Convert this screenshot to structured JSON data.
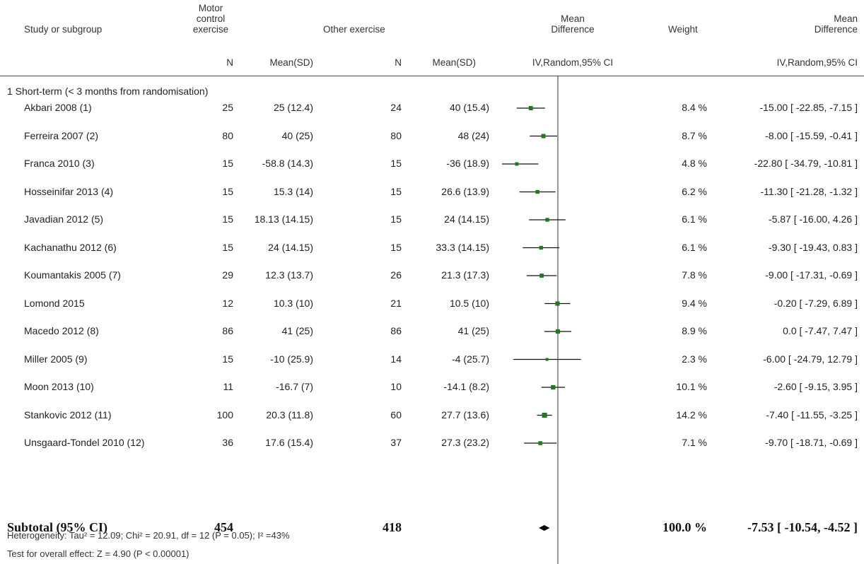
{
  "header": {
    "study": "Study or subgroup",
    "group1": [
      "Motor",
      "control",
      "exercise"
    ],
    "group2": "Other exercise",
    "md_plot": [
      "Mean",
      "Difference"
    ],
    "weight": "Weight",
    "md_text": [
      "Mean",
      "Difference"
    ],
    "n1": "N",
    "mean1": "Mean(SD)",
    "n2": "N",
    "mean2": "Mean(SD)",
    "method_plot": "IV,Random,95% CI",
    "method_text": "IV,Random,95% CI"
  },
  "subgroup_title": "1 Short-term (< 3 months from randomisation)",
  "colors": {
    "marker": "#1e7a1e",
    "line": "#111111",
    "axis": "#333333"
  },
  "chart_data": {
    "type": "forest",
    "x_range": [
      -31,
      31
    ],
    "null_line": 0,
    "studies": [
      {
        "name": "Akbari 2008 (1)",
        "n1": "25",
        "m1": "25 (12.4)",
        "n2": "24",
        "m2": "40 (15.4)",
        "weight": "8.4 %",
        "ci_text": "-15.00 [ -22.85, -7.15 ]",
        "md": -15.0,
        "lo": -22.85,
        "hi": -7.15,
        "w": 8.4
      },
      {
        "name": "Ferreira 2007 (2)",
        "n1": "80",
        "m1": "40 (25)",
        "n2": "80",
        "m2": "48 (24)",
        "weight": "8.7 %",
        "ci_text": "-8.00 [ -15.59, -0.41 ]",
        "md": -8.0,
        "lo": -15.59,
        "hi": -0.41,
        "w": 8.7
      },
      {
        "name": "Franca 2010 (3)",
        "n1": "15",
        "m1": "-58.8 (14.3)",
        "n2": "15",
        "m2": "-36 (18.9)",
        "weight": "4.8 %",
        "ci_text": "-22.80 [ -34.79, -10.81 ]",
        "md": -22.8,
        "lo": -34.79,
        "hi": -10.81,
        "w": 4.8
      },
      {
        "name": "Hosseinifar 2013 (4)",
        "n1": "15",
        "m1": "15.3 (14)",
        "n2": "15",
        "m2": "26.6 (13.9)",
        "weight": "6.2 %",
        "ci_text": "-11.30 [ -21.28, -1.32 ]",
        "md": -11.3,
        "lo": -21.28,
        "hi": -1.32,
        "w": 6.2
      },
      {
        "name": "Javadian 2012 (5)",
        "n1": "15",
        "m1": "18.13 (14.15)",
        "n2": "15",
        "m2": "24 (14.15)",
        "weight": "6.1 %",
        "ci_text": "-5.87 [ -16.00, 4.26 ]",
        "md": -5.87,
        "lo": -16.0,
        "hi": 4.26,
        "w": 6.1
      },
      {
        "name": "Kachanathu 2012 (6)",
        "n1": "15",
        "m1": "24 (14.15)",
        "n2": "15",
        "m2": "33.3 (14.15)",
        "weight": "6.1 %",
        "ci_text": "-9.30 [ -19.43, 0.83 ]",
        "md": -9.3,
        "lo": -19.43,
        "hi": 0.83,
        "w": 6.1
      },
      {
        "name": "Koumantakis 2005 (7)",
        "n1": "29",
        "m1": "12.3 (13.7)",
        "n2": "26",
        "m2": "21.3 (17.3)",
        "weight": "7.8 %",
        "ci_text": "-9.00 [ -17.31, -0.69 ]",
        "md": -9.0,
        "lo": -17.31,
        "hi": -0.69,
        "w": 7.8
      },
      {
        "name": "Lomond 2015",
        "n1": "12",
        "m1": "10.3 (10)",
        "n2": "21",
        "m2": "10.5 (10)",
        "weight": "9.4 %",
        "ci_text": "-0.20 [ -7.29, 6.89 ]",
        "md": -0.2,
        "lo": -7.29,
        "hi": 6.89,
        "w": 9.4
      },
      {
        "name": "Macedo 2012 (8)",
        "n1": "86",
        "m1": "41 (25)",
        "n2": "86",
        "m2": "41 (25)",
        "weight": "8.9 %",
        "ci_text": "0.0 [ -7.47, 7.47 ]",
        "md": 0.0,
        "lo": -7.47,
        "hi": 7.47,
        "w": 8.9
      },
      {
        "name": "Miller 2005 (9)",
        "n1": "15",
        "m1": "-10 (25.9)",
        "n2": "14",
        "m2": "-4 (25.7)",
        "weight": "2.3 %",
        "ci_text": "-6.00 [ -24.79, 12.79 ]",
        "md": -6.0,
        "lo": -24.79,
        "hi": 12.79,
        "w": 2.3
      },
      {
        "name": "Moon 2013 (10)",
        "n1": "11",
        "m1": "-16.7 (7)",
        "n2": "10",
        "m2": "-14.1 (8.2)",
        "weight": "10.1 %",
        "ci_text": "-2.60 [ -9.15, 3.95 ]",
        "md": -2.6,
        "lo": -9.15,
        "hi": 3.95,
        "w": 10.1
      },
      {
        "name": "Stankovic 2012 (11)",
        "n1": "100",
        "m1": "20.3 (11.8)",
        "n2": "60",
        "m2": "27.7 (13.6)",
        "weight": "14.2 %",
        "ci_text": "-7.40 [ -11.55, -3.25 ]",
        "md": -7.4,
        "lo": -11.55,
        "hi": -3.25,
        "w": 14.2
      },
      {
        "name": "Unsgaard-Tondel 2010 (12)",
        "n1": "36",
        "m1": "17.6 (15.4)",
        "n2": "37",
        "m2": "27.3 (23.2)",
        "weight": "7.1 %",
        "ci_text": "-9.70 [ -18.71, -0.69 ]",
        "md": -9.7,
        "lo": -18.71,
        "hi": -0.69,
        "w": 7.1
      }
    ],
    "subtotal": {
      "label": "Subtotal (95% CI)",
      "n1": "454",
      "n2": "418",
      "weight": "100.0 %",
      "ci_text": "-7.53 [ -10.54, -4.52 ]",
      "md": -7.53,
      "lo": -10.54,
      "hi": -4.52
    }
  },
  "footer": {
    "heterogeneity": "Heterogeneity: Tau² = 12.09; Chi² = 20.91, df = 12 (P = 0.05); I² =43%",
    "overall": "Test for overall effect: Z = 4.90 (P < 0.00001)"
  }
}
